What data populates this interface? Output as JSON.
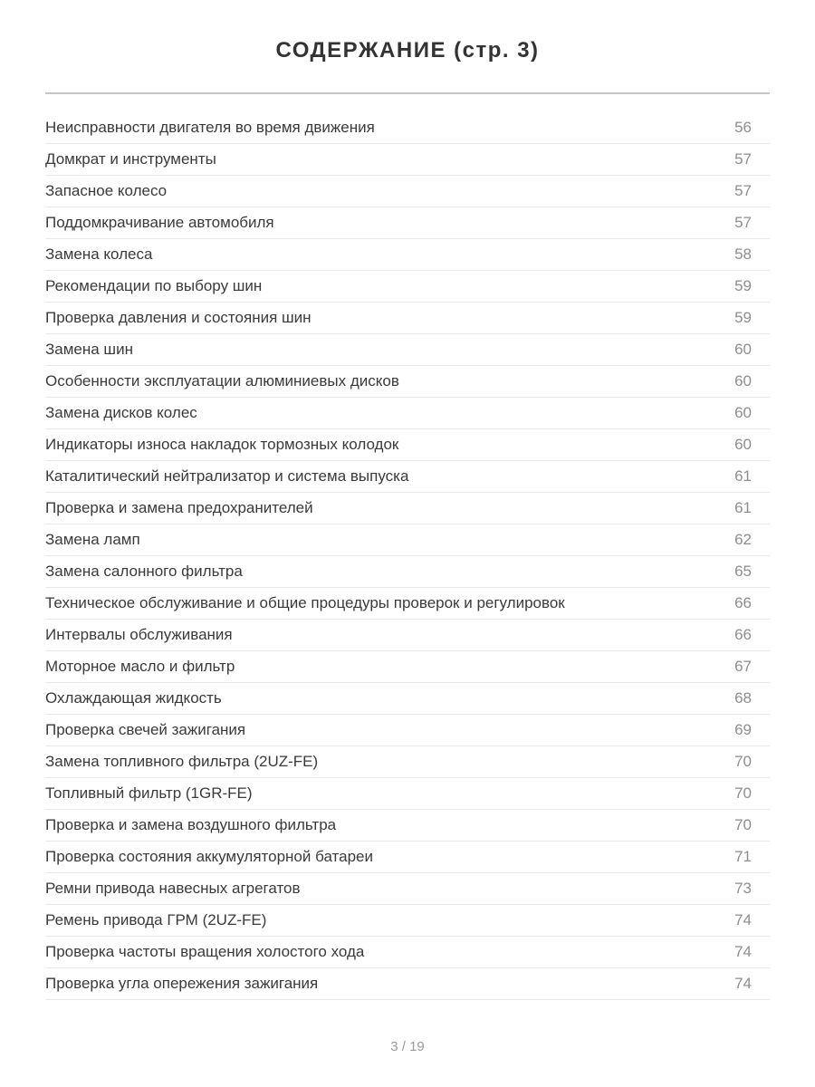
{
  "page": {
    "title": "СОДЕРЖАНИЕ (стр. 3)",
    "footer": "3 / 19"
  },
  "colors": {
    "title_text": "#333333",
    "entry_text": "#3a3a3a",
    "page_number_text": "#8e8e8e",
    "title_divider": "#c6c6c6",
    "row_divider": "#e9e9e9",
    "footer_text": "#9a9a9a",
    "background": "#ffffff"
  },
  "toc": {
    "entries": [
      {
        "label": "Неисправности двигателя во время движения",
        "page": "56"
      },
      {
        "label": "Домкрат и инструменты",
        "page": "57"
      },
      {
        "label": "Запасное колесо",
        "page": "57"
      },
      {
        "label": "Поддомкрачивание автомобиля",
        "page": "57"
      },
      {
        "label": "Замена колеса",
        "page": "58"
      },
      {
        "label": "Рекомендации по выбору шин",
        "page": "59"
      },
      {
        "label": "Проверка давления и состояния шин",
        "page": "59"
      },
      {
        "label": "Замена шин",
        "page": "60"
      },
      {
        "label": "Особенности эксплуатации алюминиевых дисков",
        "page": "60"
      },
      {
        "label": "Замена дисков колес",
        "page": "60"
      },
      {
        "label": "Индикаторы износа накладок тормозных колодок",
        "page": "60"
      },
      {
        "label": "Каталитический нейтрализатор и система выпуска",
        "page": "61"
      },
      {
        "label": "Проверка и замена предохранителей",
        "page": "61"
      },
      {
        "label": "Замена ламп",
        "page": "62"
      },
      {
        "label": "Замена салонного фильтра",
        "page": "65"
      },
      {
        "label": "Техническое обслуживание и общие процедуры проверок и регулировок",
        "page": "66"
      },
      {
        "label": "Интервалы обслуживания",
        "page": "66"
      },
      {
        "label": "Моторное масло и фильтр",
        "page": "67"
      },
      {
        "label": "Охлаждающая жидкость",
        "page": "68"
      },
      {
        "label": "Проверка свечей зажигания",
        "page": "69"
      },
      {
        "label": "Замена топливного фильтра (2UZ-FE)",
        "page": "70"
      },
      {
        "label": "Топливный фильтр (1GR-FE)",
        "page": "70"
      },
      {
        "label": "Проверка и замена воздушного фильтра",
        "page": "70"
      },
      {
        "label": "Проверка состояния аккумуляторной батареи",
        "page": "71"
      },
      {
        "label": "Ремни привода навесных агрегатов",
        "page": "73"
      },
      {
        "label": "Ремень привода ГРМ (2UZ-FE)",
        "page": "74"
      },
      {
        "label": "Проверка частоты вращения холостого хода",
        "page": "74"
      },
      {
        "label": "Проверка угла опережения зажигания",
        "page": "74"
      }
    ]
  }
}
